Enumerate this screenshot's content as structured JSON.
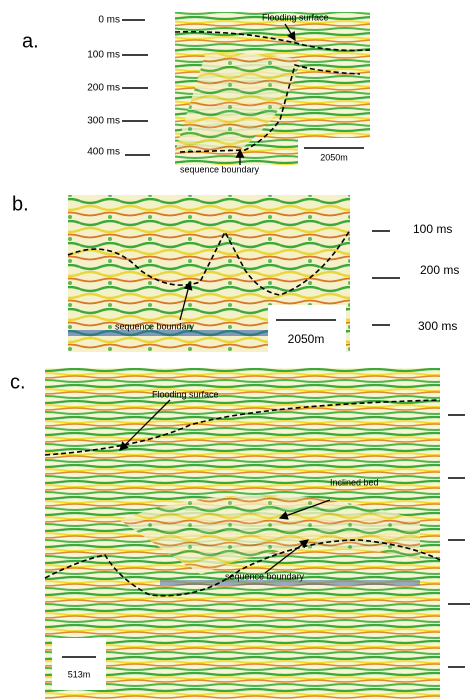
{
  "panels": [
    {
      "label": "a.",
      "time_labels": [
        "0 ms",
        "100 ms",
        "200 ms",
        "300 ms",
        "400 ms"
      ],
      "annotations": [
        "Flooding surface",
        "sequence boundary"
      ],
      "scale": "2050m"
    },
    {
      "label": "b.",
      "time_labels": [
        "100 ms",
        "200 ms",
        "300 ms"
      ],
      "annotations": [
        "sequence boundary"
      ],
      "scale": "2050m"
    },
    {
      "label": "c.",
      "annotations": [
        "Flooding surface",
        "Inclined bed",
        "sequence boundary"
      ],
      "scale": "513m"
    }
  ]
}
